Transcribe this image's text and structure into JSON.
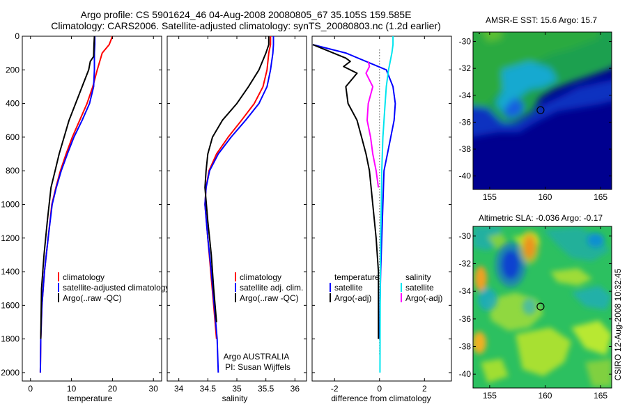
{
  "header": {
    "title_line1": "Argo profile: CS 5901624_46 04-Aug-2008 20080805_67 35.105S 159.585E",
    "title_line2": "Climatology: CARS2006. Satellite-adjusted climatology: synTS_20080803.nc (1.2d earlier)"
  },
  "side_text": "CSIRO 12-Aug-2008 10:32:45",
  "colors": {
    "climatology": "#ff0000",
    "satellite": "#0000ff",
    "argo": "#000000",
    "sat_sal": "#00e5ee",
    "argo_sal": "#ff00ff"
  },
  "chart_data": [
    {
      "id": "temperature",
      "type": "line",
      "xlabel": "temperature",
      "xlim": [
        -2,
        32
      ],
      "ylim": [
        0,
        2050
      ],
      "y_reversed": true,
      "x_ticks": [
        "0",
        "10",
        "20",
        "30"
      ],
      "y_ticks": [
        "0",
        "200",
        "400",
        "600",
        "800",
        "1000",
        "1200",
        "1400",
        "1600",
        "1800",
        "2000"
      ],
      "legend": [
        "climatology",
        "satellite-adjusted climatology",
        "Argo(..raw -QC)"
      ],
      "series": [
        {
          "name": "climatology",
          "color": "#ff0000",
          "x": [
            20.0,
            19.2,
            17.5,
            16.3,
            15.2,
            13.8,
            12.0,
            10.2,
            8.7,
            7.3,
            6.2,
            5.2,
            4.3,
            3.4,
            2.8,
            2.5,
            2.4
          ],
          "y": [
            0,
            50,
            100,
            200,
            300,
            400,
            500,
            600,
            700,
            800,
            900,
            1000,
            1200,
            1400,
            1600,
            1800,
            2000
          ]
        },
        {
          "name": "satellite-adjusted climatology",
          "color": "#0000ff",
          "x": [
            15.7,
            15.7,
            15.6,
            15.6,
            15.4,
            14.4,
            12.6,
            10.6,
            9.0,
            7.5,
            6.3,
            5.3,
            4.3,
            3.4,
            2.8,
            2.5,
            2.4
          ],
          "y": [
            0,
            50,
            100,
            200,
            300,
            400,
            500,
            600,
            700,
            800,
            900,
            1000,
            1200,
            1400,
            1600,
            1800,
            2000
          ]
        },
        {
          "name": "Argo(..raw -QC)",
          "color": "#000000",
          "x": [
            15.6,
            15.5,
            15.4,
            14.6,
            14.2,
            12.6,
            11.0,
            9.4,
            8.2,
            7.0,
            6.0,
            5.0,
            4.1,
            3.3,
            2.7,
            2.5
          ],
          "y": [
            0,
            50,
            120,
            150,
            200,
            300,
            400,
            500,
            600,
            700,
            800,
            900,
            1100,
            1300,
            1500,
            1800
          ]
        }
      ]
    },
    {
      "id": "salinity",
      "type": "line",
      "xlabel": "salinity",
      "xlim": [
        33.8,
        36.2
      ],
      "ylim": [
        0,
        2050
      ],
      "y_reversed": true,
      "x_ticks": [
        "34",
        "34.5",
        "35",
        "35.5",
        "36"
      ],
      "legend": [
        "climatology",
        "satellite adj. clim.",
        "Argo(..raw -QC)"
      ],
      "annotation": [
        "Argo AUSTRALIA",
        "PI: Susan Wijffels"
      ],
      "series": [
        {
          "name": "climatology",
          "color": "#ff0000",
          "x": [
            35.58,
            35.58,
            35.55,
            35.52,
            35.45,
            35.3,
            35.08,
            34.85,
            34.65,
            34.52,
            34.47,
            34.45,
            34.5,
            34.55,
            34.6,
            34.65
          ],
          "y": [
            0,
            50,
            100,
            200,
            300,
            400,
            500,
            600,
            700,
            800,
            900,
            1000,
            1200,
            1400,
            1600,
            1800
          ]
        },
        {
          "name": "satellite adj. clim.",
          "color": "#0000ff",
          "x": [
            35.63,
            35.63,
            35.62,
            35.58,
            35.52,
            35.38,
            35.15,
            34.9,
            34.68,
            34.53,
            34.47,
            34.45,
            34.5,
            34.56,
            34.61,
            34.66,
            34.68
          ],
          "y": [
            0,
            50,
            100,
            200,
            300,
            400,
            500,
            600,
            700,
            800,
            900,
            1000,
            1200,
            1400,
            1600,
            1800,
            2000
          ]
        },
        {
          "name": "Argo(..raw -QC)",
          "color": "#000000",
          "x": [
            35.55,
            35.55,
            35.5,
            35.38,
            35.2,
            35.0,
            34.75,
            34.58,
            34.5,
            34.47,
            34.45,
            34.5,
            34.56,
            34.6,
            34.65
          ],
          "y": [
            0,
            50,
            100,
            200,
            300,
            400,
            500,
            600,
            700,
            800,
            900,
            1100,
            1300,
            1500,
            1700
          ]
        }
      ]
    },
    {
      "id": "difference",
      "type": "line",
      "xlabel": "difference from climatology",
      "xlim": [
        -3,
        3.2
      ],
      "ylim": [
        0,
        2050
      ],
      "y_reversed": true,
      "x_ticks": [
        "-2",
        "0",
        "2"
      ],
      "legend_groups": [
        {
          "heading": "temperature",
          "items": [
            "satellite",
            "Argo(-adj)"
          ]
        },
        {
          "heading": "salinity",
          "items": [
            "satellite",
            "Argo(-adj)"
          ]
        }
      ],
      "series": [
        {
          "name": "temperature satellite",
          "color": "#0000ff",
          "x": [
            -4.3,
            -1.5,
            0.3,
            0.6,
            0.7,
            0.65,
            0.5,
            0.35,
            0.2,
            0.15,
            0.1,
            0.05,
            0.02,
            0.0
          ],
          "y": [
            50,
            100,
            200,
            300,
            400,
            500,
            600,
            700,
            800,
            1000,
            1200,
            1400,
            1600,
            1800
          ]
        },
        {
          "name": "temperature Argo(-adj)",
          "color": "#000000",
          "x": [
            -4.3,
            -1.5,
            -1.3,
            -1.6,
            -1.0,
            -1.5,
            -1.4,
            -1.0,
            -0.8,
            -0.6,
            -0.45,
            -0.3,
            -0.15,
            -0.05,
            -0.05
          ],
          "y": [
            50,
            130,
            150,
            180,
            220,
            300,
            400,
            500,
            600,
            700,
            800,
            1000,
            1200,
            1400,
            1800
          ]
        },
        {
          "name": "salinity satellite",
          "color": "#00e5ee",
          "x": [
            0.6,
            0.6,
            0.55,
            0.4,
            0.3,
            0.25,
            0.2,
            0.15,
            0.1,
            0.08,
            0.05,
            0.03,
            0.02
          ],
          "y": [
            0,
            50,
            100,
            200,
            300,
            400,
            500,
            600,
            800,
            1000,
            1200,
            1600,
            2000
          ]
        },
        {
          "name": "salinity Argo(-adj)",
          "color": "#ff00ff",
          "x": [
            -0.5,
            -0.45,
            -0.6,
            -0.3,
            -0.5,
            -0.55,
            -0.4,
            -0.3,
            -0.15,
            -0.05
          ],
          "y": [
            150,
            180,
            220,
            300,
            400,
            500,
            600,
            700,
            800,
            900
          ]
        }
      ]
    },
    {
      "id": "sst_map",
      "type": "heatmap",
      "title": "AMSR-E SST: 15.6  Argo: 15.7",
      "xlim": [
        153.5,
        166
      ],
      "ylim": [
        -41,
        -29.3
      ],
      "x_ticks": [
        "155",
        "160",
        "165"
      ],
      "y_ticks": [
        "-30",
        "-32",
        "-34",
        "-36",
        "-38",
        "-40"
      ],
      "marker": {
        "lon": 159.585,
        "lat": -35.105
      }
    },
    {
      "id": "sla_map",
      "type": "heatmap",
      "title": "Altimetric SLA: -0.036  Argo: -0.17",
      "xlim": [
        153.5,
        166
      ],
      "ylim": [
        -41,
        -29.3
      ],
      "x_ticks": [
        "155",
        "160",
        "165"
      ],
      "y_ticks": [
        "-30",
        "-32",
        "-34",
        "-36",
        "-38",
        "-40"
      ],
      "marker": {
        "lon": 159.585,
        "lat": -35.105
      }
    }
  ]
}
